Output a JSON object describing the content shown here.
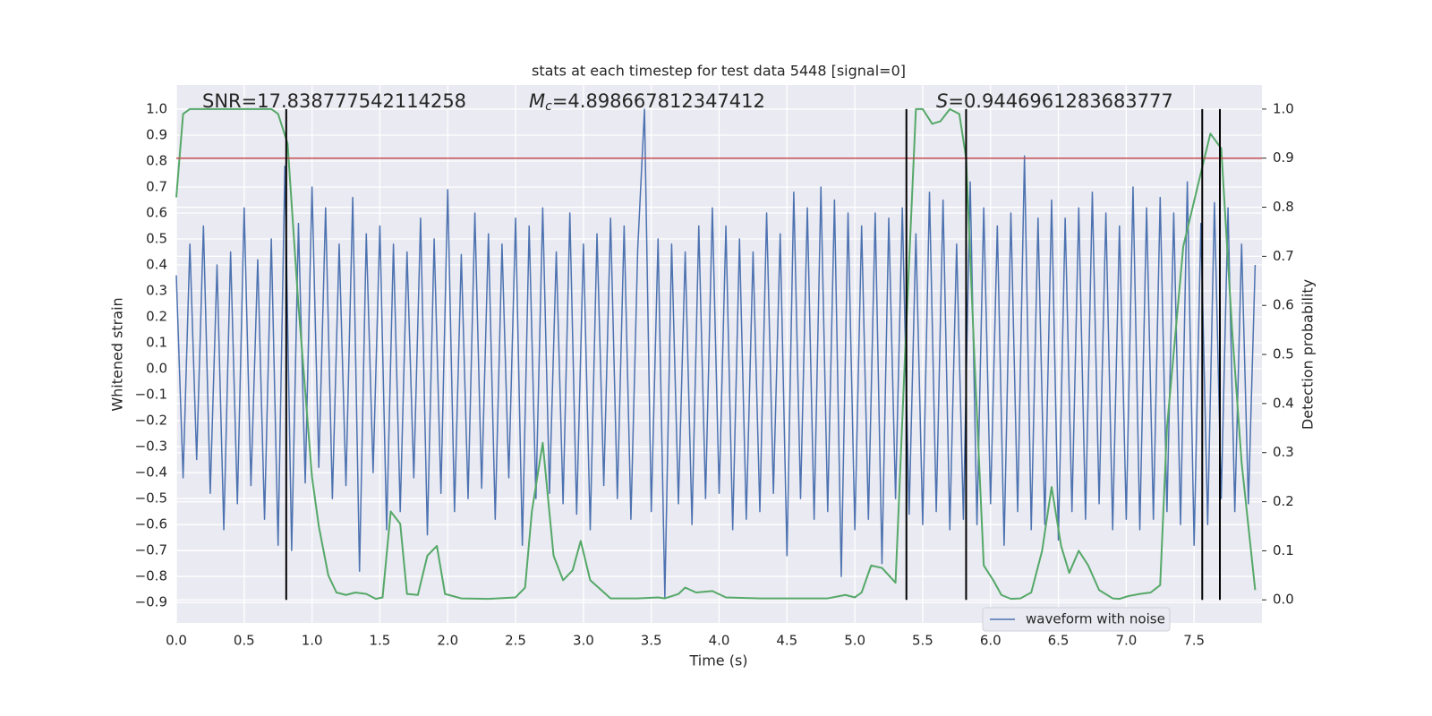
{
  "chart_data": {
    "type": "line",
    "title": "stats at each timestep for test data 5448 [signal=0]",
    "x_label": "Time (s)",
    "y_label": "Whitened strain",
    "y2_label": "Detection probability",
    "annotations": [
      {
        "parts": [
          {
            "text": "SNR=17.838777542114258"
          }
        ]
      },
      {
        "parts": [
          {
            "text": "M",
            "italic": true
          },
          {
            "text": "c",
            "italic": true,
            "sub": true
          },
          {
            "text": "=4.898667812347412"
          }
        ]
      },
      {
        "parts": [
          {
            "text": "S",
            "italic": true
          },
          {
            "text": "=0.9446961283683777"
          }
        ]
      }
    ],
    "xlim": [
      0,
      8
    ],
    "xticks": [
      {
        "value": 0,
        "label": "0.0"
      },
      0.5,
      {
        "value": 1,
        "label": "1.0"
      },
      1.5,
      {
        "value": 2,
        "label": "2.0"
      },
      2.5,
      {
        "value": 3,
        "label": "3.0"
      },
      3.5,
      {
        "value": 4,
        "label": "4.0"
      },
      4.5,
      {
        "value": 5,
        "label": "5.0"
      },
      5.5,
      {
        "value": 6,
        "label": "6.0"
      },
      6.5,
      {
        "value": 7,
        "label": "7.0"
      },
      7.5
    ],
    "ylim": [
      -0.979,
      1.093
    ],
    "yticks": [
      {
        "value": -0.9,
        "label": "−0.9"
      },
      {
        "value": -0.8,
        "label": "−0.8"
      },
      {
        "value": -0.7,
        "label": "−0.7"
      },
      {
        "value": -0.6,
        "label": "−0.6"
      },
      {
        "value": -0.5,
        "label": "−0.5"
      },
      {
        "value": -0.4,
        "label": "−0.4"
      },
      {
        "value": -0.3,
        "label": "−0.3"
      },
      {
        "value": -0.2,
        "label": "−0.2"
      },
      {
        "value": -0.1,
        "label": "−0.1"
      },
      {
        "value": 0,
        "label": "0.0"
      },
      0.1,
      0.2,
      0.3,
      0.4,
      0.5,
      0.6,
      0.7,
      0.8,
      0.9,
      {
        "value": 1,
        "label": "1.0"
      }
    ],
    "y2lim": [
      -0.047,
      1.049
    ],
    "y2ticks": [
      {
        "value": 0,
        "label": "0.0"
      },
      0.1,
      0.2,
      0.3,
      0.4,
      0.5,
      0.6,
      0.7,
      0.8,
      0.9,
      {
        "value": 1,
        "label": "1.0"
      }
    ],
    "grid": true,
    "legend": "lower right",
    "threshold": {
      "value": 0.9,
      "axis": "y2",
      "color": "#c44e52"
    },
    "vlines": [
      0.81,
      5.38,
      5.82,
      7.56,
      7.69
    ],
    "vline_color": "#000000",
    "series": [
      {
        "name": "waveform with noise",
        "color": "#4c72b0",
        "axis": "y",
        "x": [
          0,
          0.05,
          0.1,
          0.15,
          0.2,
          0.25,
          0.3,
          0.35,
          0.4,
          0.45,
          0.5,
          0.55,
          0.6,
          0.65,
          0.7,
          0.75,
          0.8,
          0.85,
          0.9,
          0.95,
          1,
          1.05,
          1.1,
          1.15,
          1.2,
          1.25,
          1.3,
          1.35,
          1.4,
          1.45,
          1.5,
          1.55,
          1.6,
          1.65,
          1.7,
          1.75,
          1.8,
          1.85,
          1.9,
          1.95,
          2,
          2.05,
          2.1,
          2.15,
          2.2,
          2.25,
          2.3,
          2.35,
          2.4,
          2.45,
          2.5,
          2.55,
          2.6,
          2.65,
          2.7,
          2.75,
          2.8,
          2.85,
          2.9,
          2.95,
          3,
          3.05,
          3.1,
          3.15,
          3.2,
          3.25,
          3.3,
          3.35,
          3.4,
          3.45,
          3.5,
          3.55,
          3.6,
          3.65,
          3.7,
          3.75,
          3.8,
          3.85,
          3.9,
          3.95,
          4,
          4.05,
          4.1,
          4.15,
          4.2,
          4.25,
          4.3,
          4.35,
          4.4,
          4.45,
          4.5,
          4.55,
          4.6,
          4.65,
          4.7,
          4.75,
          4.8,
          4.85,
          4.9,
          4.95,
          5,
          5.05,
          5.1,
          5.15,
          5.2,
          5.25,
          5.3,
          5.35,
          5.4,
          5.45,
          5.5,
          5.55,
          5.6,
          5.65,
          5.7,
          5.75,
          5.8,
          5.85,
          5.9,
          5.95,
          6,
          6.05,
          6.1,
          6.15,
          6.2,
          6.25,
          6.3,
          6.35,
          6.4,
          6.45,
          6.5,
          6.55,
          6.6,
          6.65,
          6.7,
          6.75,
          6.8,
          6.85,
          6.9,
          6.95,
          7,
          7.05,
          7.1,
          7.15,
          7.2,
          7.25,
          7.3,
          7.35,
          7.4,
          7.45,
          7.5,
          7.55,
          7.6,
          7.65,
          7.7,
          7.75,
          7.8,
          7.85,
          7.9,
          7.95
        ],
        "values": [
          0.36,
          -0.42,
          0.48,
          -0.35,
          0.55,
          -0.48,
          0.4,
          -0.62,
          0.45,
          -0.52,
          0.62,
          -0.45,
          0.42,
          -0.58,
          0.5,
          -0.68,
          0.78,
          -0.7,
          0.56,
          -0.44,
          0.7,
          -0.38,
          0.62,
          -0.5,
          0.48,
          -0.45,
          0.66,
          -0.78,
          0.52,
          -0.4,
          0.55,
          -0.62,
          0.48,
          -0.55,
          0.45,
          -0.42,
          0.58,
          -0.64,
          0.5,
          -0.48,
          0.69,
          -0.55,
          0.44,
          -0.5,
          0.6,
          -0.46,
          0.52,
          -0.58,
          0.48,
          -0.42,
          0.58,
          -0.68,
          0.55,
          -0.5,
          0.62,
          -0.48,
          0.45,
          -0.52,
          0.6,
          -0.56,
          0.48,
          -0.62,
          0.52,
          -0.45,
          0.58,
          -0.5,
          0.55,
          -0.58,
          0.46,
          1.0,
          -0.55,
          0.5,
          -0.88,
          0.48,
          -0.52,
          0.45,
          -0.6,
          0.55,
          -0.5,
          0.62,
          -0.48,
          0.55,
          -0.62,
          0.5,
          -0.58,
          0.45,
          -0.55,
          0.6,
          -0.48,
          0.52,
          -0.72,
          0.68,
          -0.5,
          0.62,
          -0.58,
          0.7,
          -0.55,
          0.65,
          -0.8,
          0.6,
          -0.62,
          0.55,
          -0.58,
          0.6,
          -0.75,
          0.58,
          -0.5,
          0.62,
          -0.56,
          0.52,
          -0.6,
          0.68,
          -0.55,
          0.65,
          -0.62,
          0.48,
          -0.58,
          0.72,
          -0.6,
          0.62,
          -0.52,
          0.55,
          -0.68,
          0.6,
          -0.55,
          0.82,
          -0.62,
          0.58,
          -0.6,
          0.65,
          -0.66,
          0.58,
          -0.55,
          0.62,
          -0.58,
          0.68,
          -0.52,
          0.6,
          -0.62,
          0.55,
          -0.58,
          0.7,
          -0.62,
          0.62,
          -0.58,
          0.66,
          -0.55,
          0.6,
          -0.6,
          0.72,
          -0.68,
          0.56,
          -0.6,
          0.64,
          -0.5,
          0.62,
          -0.55,
          0.48,
          -0.52,
          0.4
        ]
      },
      {
        "color": "#55a868",
        "axis": "y2",
        "x": [
          0,
          0.05,
          0.1,
          0.2,
          0.3,
          0.4,
          0.5,
          0.6,
          0.7,
          0.75,
          0.82,
          0.9,
          1.0,
          1.05,
          1.12,
          1.18,
          1.25,
          1.32,
          1.4,
          1.47,
          1.52,
          1.58,
          1.65,
          1.7,
          1.78,
          1.85,
          1.92,
          1.98,
          2.1,
          2.3,
          2.5,
          2.57,
          2.62,
          2.7,
          2.78,
          2.85,
          2.92,
          2.98,
          3.05,
          3.2,
          3.4,
          3.55,
          3.6,
          3.7,
          3.75,
          3.83,
          3.95,
          4.05,
          4.3,
          4.6,
          4.8,
          4.93,
          5.0,
          5.05,
          5.12,
          5.2,
          5.3,
          5.37,
          5.45,
          5.5,
          5.57,
          5.63,
          5.7,
          5.77,
          5.82,
          5.88,
          5.95,
          6.02,
          6.08,
          6.15,
          6.22,
          6.3,
          6.38,
          6.45,
          6.52,
          6.58,
          6.65,
          6.72,
          6.8,
          6.9,
          6.95,
          7.02,
          7.1,
          7.18,
          7.25,
          7.3,
          7.42,
          7.55,
          7.62,
          7.7,
          7.78,
          7.85,
          7.95
        ],
        "values": [
          0.82,
          0.99,
          1.0,
          1.0,
          1.0,
          1.0,
          1.0,
          1.0,
          1.0,
          0.99,
          0.93,
          0.6,
          0.25,
          0.15,
          0.05,
          0.015,
          0.01,
          0.015,
          0.012,
          0.002,
          0.005,
          0.18,
          0.155,
          0.012,
          0.01,
          0.09,
          0.11,
          0.012,
          0.003,
          0.002,
          0.005,
          0.025,
          0.18,
          0.32,
          0.09,
          0.04,
          0.06,
          0.12,
          0.04,
          0.003,
          0.003,
          0.005,
          0.003,
          0.012,
          0.025,
          0.015,
          0.018,
          0.005,
          0.003,
          0.003,
          0.003,
          0.01,
          0.005,
          0.015,
          0.07,
          0.065,
          0.035,
          0.5,
          1.0,
          1.0,
          0.97,
          0.975,
          1.0,
          0.99,
          0.9,
          0.5,
          0.07,
          0.04,
          0.01,
          0.002,
          0.003,
          0.015,
          0.1,
          0.23,
          0.11,
          0.055,
          0.1,
          0.07,
          0.02,
          0.003,
          0.002,
          0.008,
          0.012,
          0.015,
          0.03,
          0.35,
          0.72,
          0.87,
          0.95,
          0.92,
          0.55,
          0.28,
          0.02
        ]
      }
    ]
  }
}
